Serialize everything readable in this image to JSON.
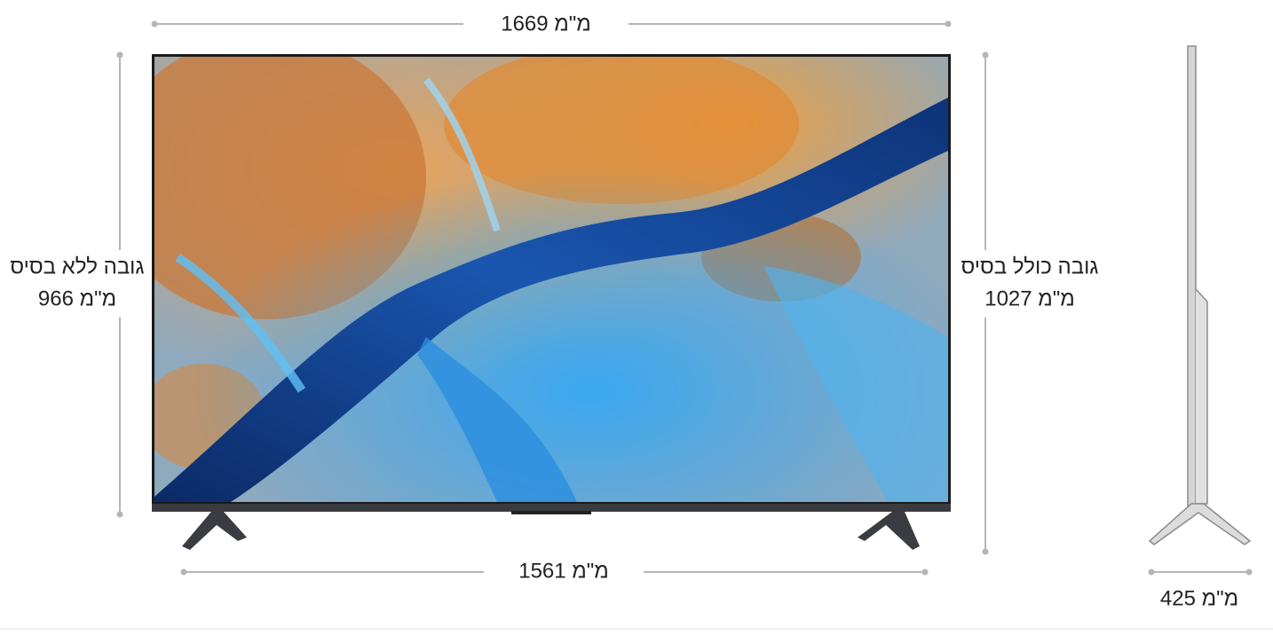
{
  "dimensions": {
    "width_total": "1669 מ\"מ",
    "height_without_stand": {
      "label": "גובה ללא בסיס",
      "value": "966 מ\"מ"
    },
    "height_with_stand": {
      "label": "גובה כולל בסיס",
      "value": "1027 מ\"מ"
    },
    "stand_width": "1561 מ\"מ",
    "depth": "425 מ\"מ"
  }
}
